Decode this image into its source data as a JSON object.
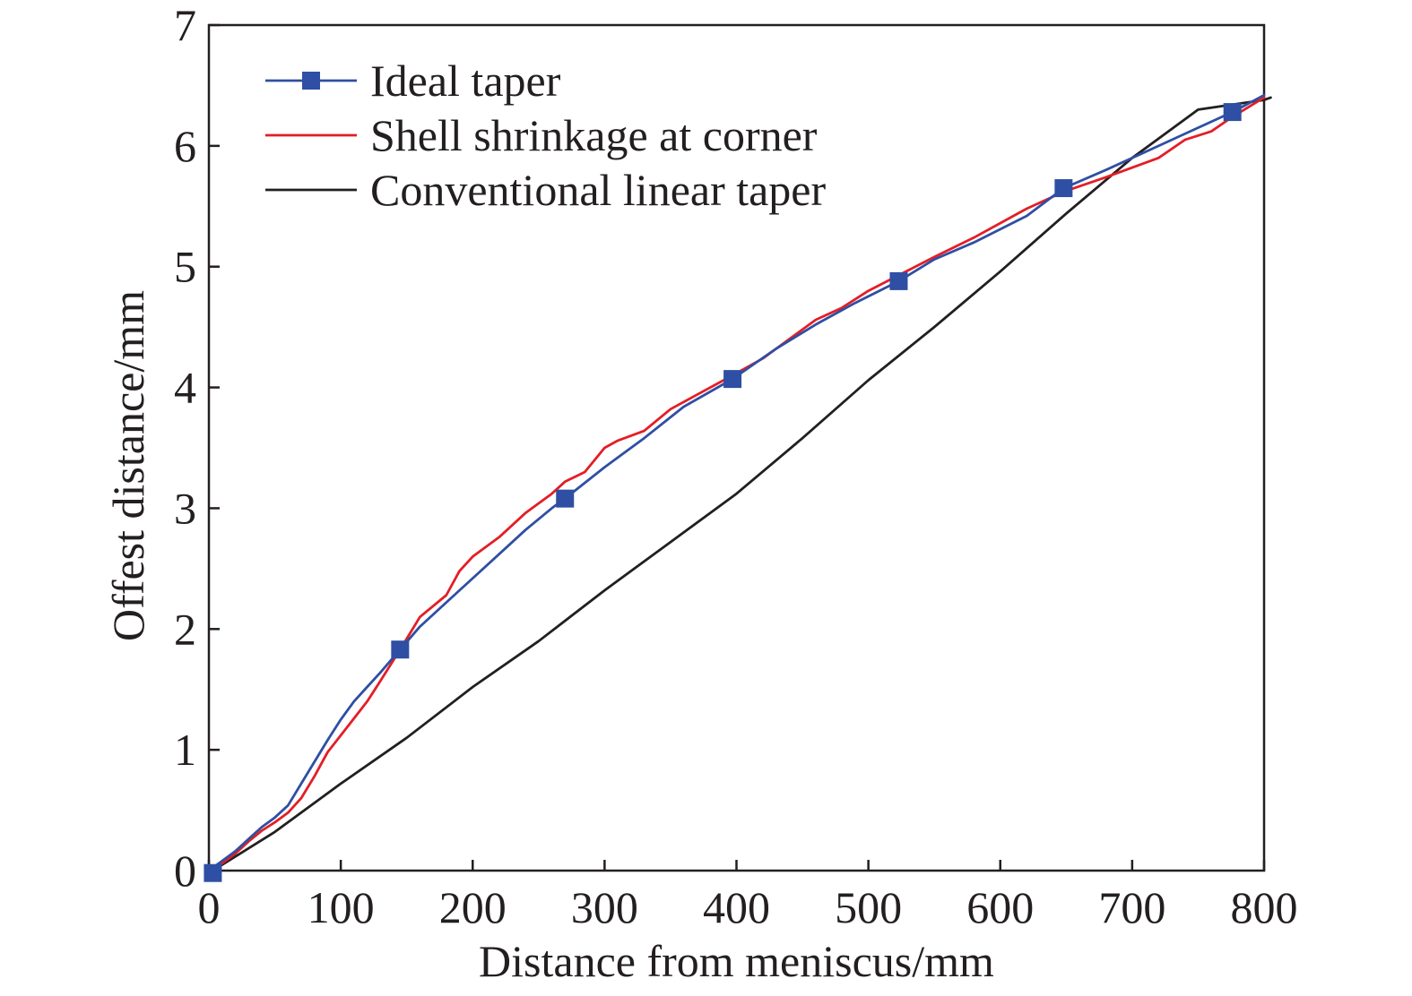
{
  "chart_data": {
    "type": "line",
    "title": "",
    "xlabel": "Distance from meniscus/mm",
    "ylabel": "Offest distance/mm",
    "xlim": [
      0,
      800
    ],
    "ylim": [
      0,
      7
    ],
    "xticks": [
      0,
      100,
      200,
      300,
      400,
      500,
      600,
      700,
      800
    ],
    "yticks": [
      0,
      1,
      2,
      3,
      4,
      5,
      6,
      7
    ],
    "xtick_labels": [
      "0",
      "100",
      "200",
      "300",
      "400",
      "500",
      "600",
      "700",
      "800"
    ],
    "ytick_labels": [
      "0",
      "1",
      "2",
      "3",
      "4",
      "5",
      "6",
      "7"
    ],
    "grid": false,
    "legend_position": "top-left",
    "series": [
      {
        "name": "Ideal taper",
        "color": "#2e4fa3",
        "marker": "square",
        "x": [
          0,
          10,
          20,
          30,
          40,
          50,
          60,
          70,
          80,
          90,
          100,
          110,
          120,
          130,
          145,
          160,
          180,
          200,
          220,
          240,
          260,
          270,
          300,
          330,
          360,
          397,
          430,
          460,
          490,
          523,
          550,
          580,
          620,
          648,
          680,
          720,
          750,
          776,
          800
        ],
        "y": [
          0,
          0.08,
          0.16,
          0.26,
          0.36,
          0.44,
          0.54,
          0.72,
          0.9,
          1.08,
          1.25,
          1.4,
          1.52,
          1.64,
          1.83,
          2.02,
          2.22,
          2.42,
          2.62,
          2.82,
          3.0,
          3.08,
          3.34,
          3.58,
          3.84,
          4.07,
          4.32,
          4.52,
          4.7,
          4.88,
          5.06,
          5.2,
          5.42,
          5.65,
          5.8,
          6.0,
          6.15,
          6.28,
          6.42
        ],
        "marker_x": [
          3,
          145,
          270,
          397,
          523,
          648,
          776
        ],
        "marker_y": [
          -0.02,
          1.83,
          3.08,
          4.07,
          4.88,
          5.65,
          6.28
        ]
      },
      {
        "name": "Shell shrinkage at corner",
        "color": "#e31e26",
        "x": [
          0,
          10,
          20,
          30,
          40,
          50,
          60,
          70,
          80,
          90,
          100,
          110,
          120,
          130,
          145,
          160,
          180,
          190,
          200,
          220,
          240,
          260,
          270,
          285,
          300,
          310,
          330,
          350,
          370,
          397,
          420,
          440,
          460,
          480,
          500,
          523,
          550,
          580,
          620,
          648,
          680,
          720,
          740,
          760,
          776,
          800
        ],
        "y": [
          0,
          0.06,
          0.14,
          0.24,
          0.33,
          0.4,
          0.48,
          0.6,
          0.78,
          0.98,
          1.12,
          1.26,
          1.4,
          1.57,
          1.83,
          2.1,
          2.28,
          2.48,
          2.6,
          2.76,
          2.96,
          3.12,
          3.22,
          3.3,
          3.5,
          3.56,
          3.64,
          3.82,
          3.94,
          4.1,
          4.24,
          4.4,
          4.56,
          4.66,
          4.8,
          4.93,
          5.08,
          5.24,
          5.48,
          5.62,
          5.74,
          5.9,
          6.05,
          6.12,
          6.24,
          6.4
        ]
      },
      {
        "name": "Conventional linear taper",
        "color": "#231f20",
        "x": [
          0,
          50,
          100,
          150,
          200,
          250,
          300,
          350,
          400,
          450,
          500,
          550,
          600,
          650,
          700,
          750,
          800,
          805
        ],
        "y": [
          -0.02,
          0.32,
          0.72,
          1.1,
          1.52,
          1.9,
          2.32,
          2.72,
          3.12,
          3.58,
          4.06,
          4.5,
          4.96,
          5.44,
          5.9,
          6.3,
          6.38,
          6.4
        ]
      }
    ]
  }
}
